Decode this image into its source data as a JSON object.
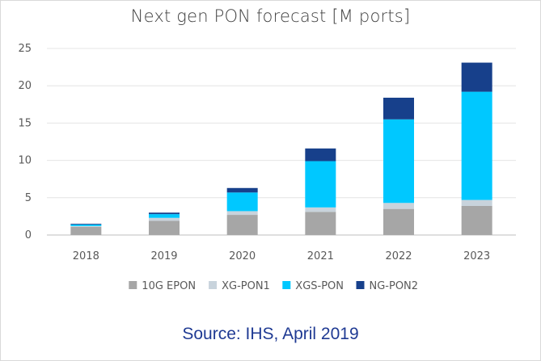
{
  "chart_data": {
    "type": "bar",
    "stacked": true,
    "title": "Next gen PON forecast [M ports]",
    "categories": [
      "2018",
      "2019",
      "2020",
      "2021",
      "2022",
      "2023"
    ],
    "series": [
      {
        "name": "10G EPON",
        "color": "#a6a6a6",
        "values": [
          1.1,
          1.9,
          2.7,
          3.1,
          3.5,
          3.9
        ]
      },
      {
        "name": "XG-PON1",
        "color": "#c8d3dc",
        "values": [
          0.1,
          0.4,
          0.5,
          0.6,
          0.8,
          0.8
        ]
      },
      {
        "name": "XGS-PON",
        "color": "#00c8ff",
        "values": [
          0.2,
          0.5,
          2.5,
          6.2,
          11.2,
          14.5
        ]
      },
      {
        "name": "NG-PON2",
        "color": "#17408b",
        "values": [
          0.1,
          0.2,
          0.6,
          1.7,
          2.9,
          3.9
        ]
      }
    ],
    "ylim": [
      0,
      25
    ],
    "yticks": [
      0,
      5,
      10,
      15,
      20,
      25
    ],
    "grid": true,
    "legend_position": "bottom"
  },
  "source": "Source: IHS, April 2019"
}
